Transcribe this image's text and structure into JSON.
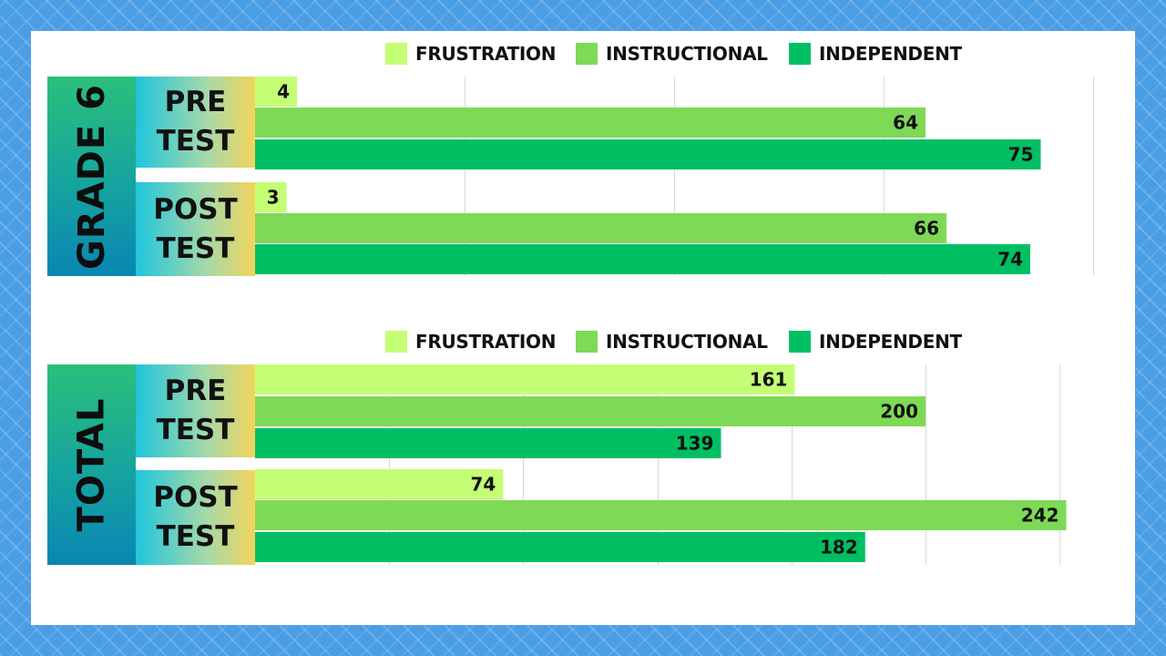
{
  "legend": [
    {
      "label": "FRUSTRATION",
      "color": "#c4fe74"
    },
    {
      "label": "INSTRUCTIONAL",
      "color": "#7ed957"
    },
    {
      "label": "INDEPENDENT",
      "color": "#00bf63"
    }
  ],
  "chart_data": [
    {
      "type": "bar",
      "orientation": "horizontal",
      "group_label": "GRADE 6",
      "categories": [
        "PRE TEST",
        "POST TEST"
      ],
      "series": [
        {
          "name": "FRUSTRATION",
          "values": [
            4,
            3
          ],
          "color": "#c4fe74"
        },
        {
          "name": "INSTRUCTIONAL",
          "values": [
            64,
            66
          ],
          "color": "#7ed957"
        },
        {
          "name": "INDEPENDENT",
          "values": [
            75,
            74
          ],
          "color": "#00bf63"
        }
      ],
      "xlim": [
        0,
        80
      ],
      "grid": true,
      "legend_position": "top"
    },
    {
      "type": "bar",
      "orientation": "horizontal",
      "group_label": "TOTAL",
      "categories": [
        "PRE TEST",
        "POST TEST"
      ],
      "series": [
        {
          "name": "FRUSTRATION",
          "values": [
            161,
            74
          ],
          "color": "#c4fe74"
        },
        {
          "name": "INSTRUCTIONAL",
          "values": [
            200,
            242
          ],
          "color": "#7ed957"
        },
        {
          "name": "INDEPENDENT",
          "values": [
            139,
            182
          ],
          "color": "#00bf63"
        }
      ],
      "xlim": [
        0,
        250
      ],
      "grid": true,
      "legend_position": "top"
    }
  ],
  "phase_labels": [
    "PRE\nTEST",
    "POST\nTEST"
  ]
}
